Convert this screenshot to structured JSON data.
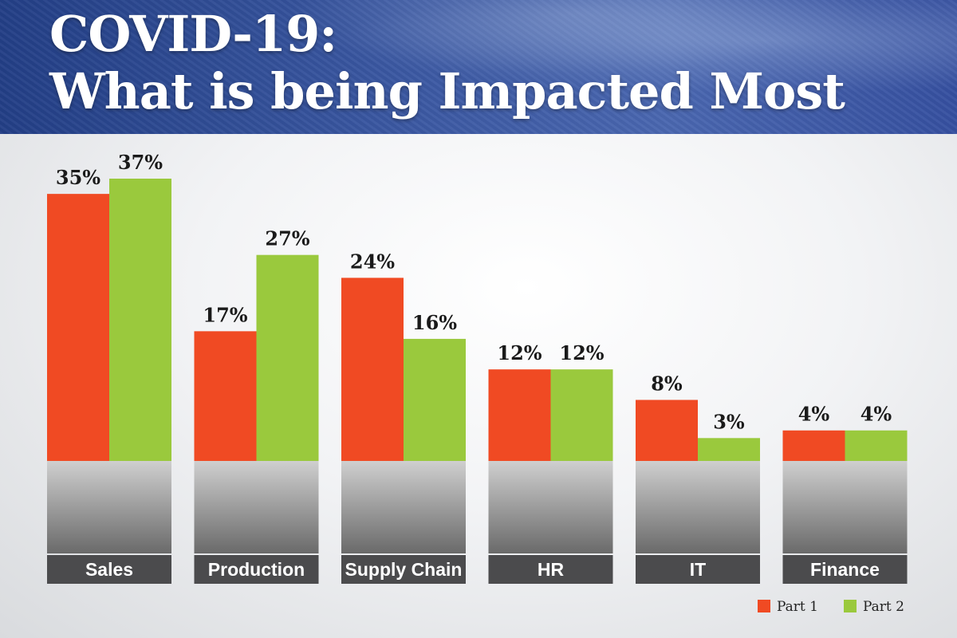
{
  "title": {
    "line1": "COVID-19:",
    "line2": "What is being Impacted Most"
  },
  "chart_data": {
    "type": "bar",
    "categories": [
      "Sales",
      "Production",
      "Supply Chain",
      "HR",
      "IT",
      "Finance"
    ],
    "series": [
      {
        "name": "Part 1",
        "color": "#f04a23",
        "values": [
          35,
          17,
          24,
          12,
          8,
          4
        ]
      },
      {
        "name": "Part 2",
        "color": "#9ac93d",
        "values": [
          37,
          27,
          16,
          12,
          3,
          4
        ]
      }
    ],
    "value_suffix": "%",
    "ylim": [
      0,
      37
    ],
    "grid": false,
    "legend_position": "bottom-right",
    "category_images": [
      "handshake",
      "robotic-assembly-line",
      "warehouse-containers",
      "business-person",
      "circuit-board",
      "coin-stacks"
    ]
  }
}
